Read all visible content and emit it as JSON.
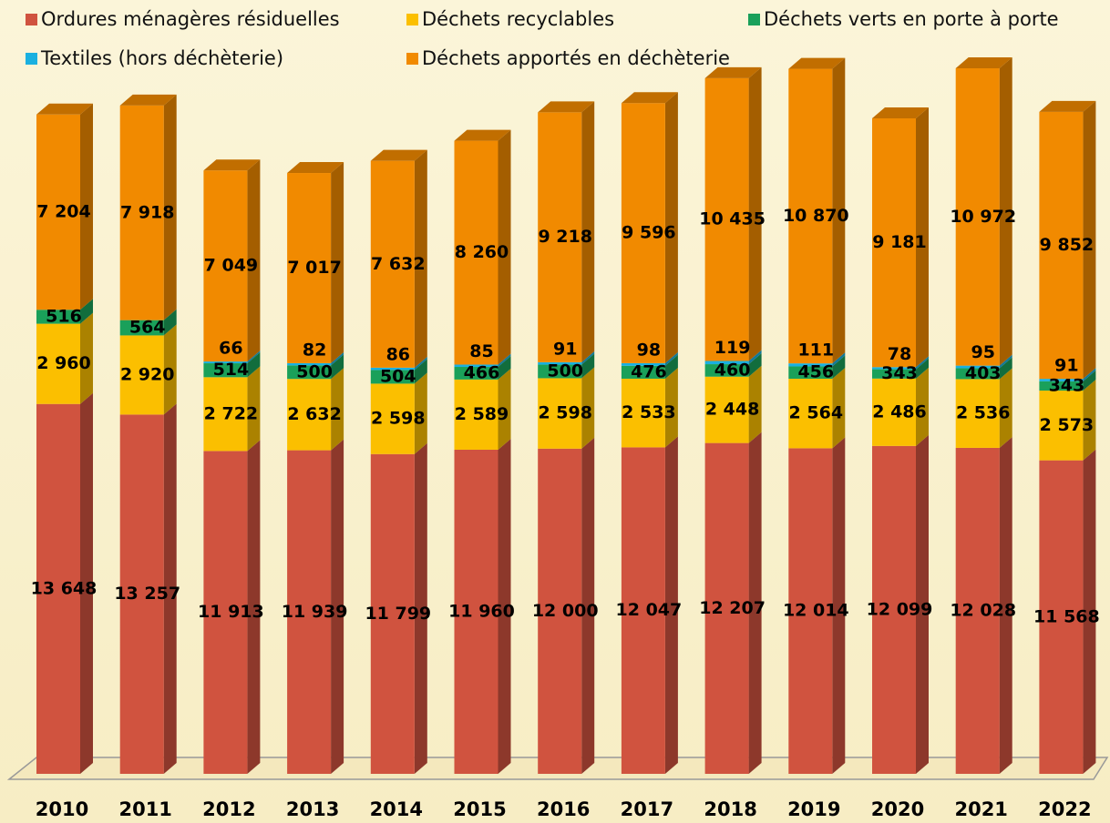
{
  "chart_data": {
    "type": "bar3d_stacked",
    "categories": [
      "2010",
      "2011",
      "2012",
      "2013",
      "2014",
      "2015",
      "2016",
      "2017",
      "2018",
      "2019",
      "2020",
      "2021",
      "2022"
    ],
    "series": [
      {
        "name": "Ordures ménagères résiduelles",
        "color": "#d0533f",
        "values": [
          13648,
          13257,
          11913,
          11939,
          11799,
          11960,
          12000,
          12047,
          12207,
          12014,
          12099,
          12028,
          11568
        ],
        "value_labels": [
          "13 648",
          "13 257",
          "11 913",
          "11 939",
          "11 799",
          "11 960",
          "12 000",
          "12 047",
          "12 207",
          "12 014",
          "12 099",
          "12 028",
          "11 568"
        ]
      },
      {
        "name": "Déchets recyclables",
        "color": "#fbbf00",
        "values": [
          2960,
          2920,
          2722,
          2632,
          2598,
          2589,
          2598,
          2533,
          2448,
          2564,
          2486,
          2536,
          2573
        ],
        "value_labels": [
          "2 960",
          "2 920",
          "2 722",
          "2 632",
          "2 598",
          "2 589",
          "2 598",
          "2 533",
          "2 448",
          "2 564",
          "2 486",
          "2 536",
          "2 573"
        ]
      },
      {
        "name": "Déchets verts en porte à porte",
        "color": "#1aa05a",
        "values": [
          516,
          564,
          514,
          500,
          504,
          466,
          500,
          476,
          460,
          456,
          343,
          403,
          343
        ]
      },
      {
        "name": "Textiles (hors déchèterie)",
        "color": "#1ab0e0",
        "values": [
          null,
          null,
          66,
          82,
          86,
          85,
          91,
          98,
          119,
          111,
          78,
          95,
          91
        ]
      },
      {
        "name": "Déchets apportés en déchèterie",
        "color": "#f18a00",
        "values": [
          7204,
          7918,
          7049,
          7017,
          7632,
          8260,
          9218,
          9596,
          10435,
          10870,
          9181,
          10972,
          9852
        ],
        "value_labels": [
          "7 204",
          "7 918",
          "7 049",
          "7 017",
          "7 632",
          "8 260",
          "9 218",
          "9 596",
          "10 435",
          "10 870",
          "9 181",
          "10 972",
          "9 852"
        ]
      }
    ]
  }
}
